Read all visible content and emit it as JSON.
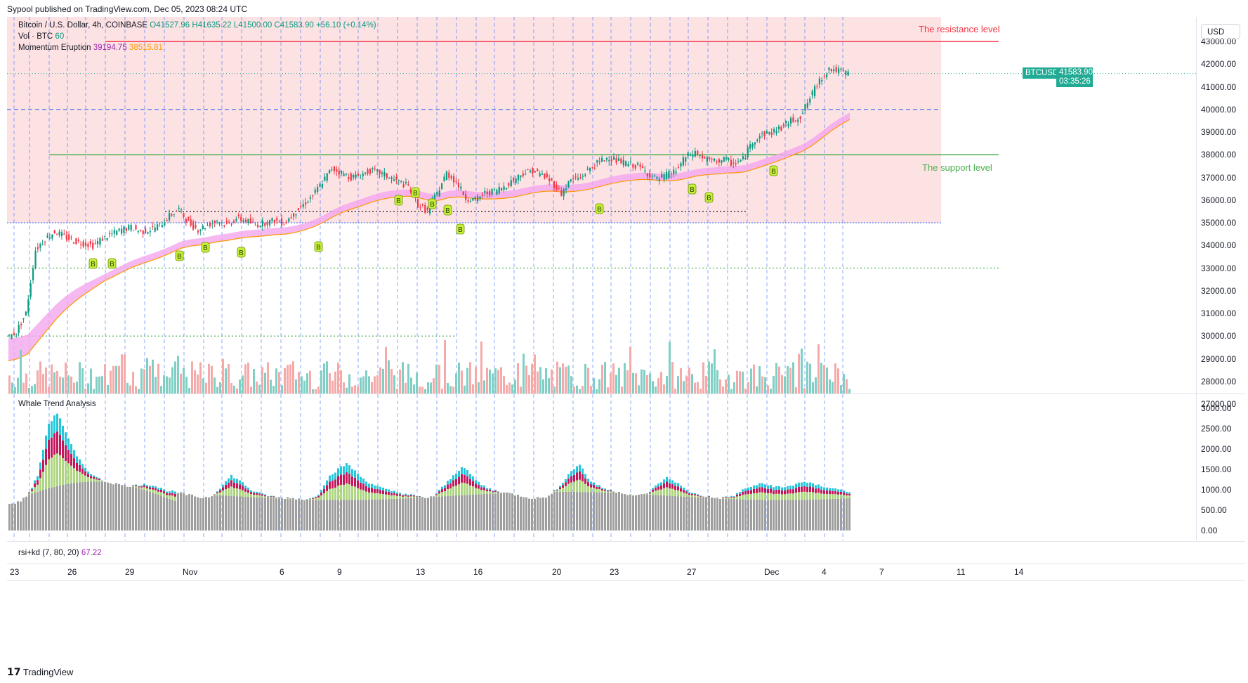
{
  "header": {
    "published_line": "Sypool published on TradingView.com, Dec 05, 2023 08:24 UTC",
    "symbol_line": "Bitcoin / U.S. Dollar, 4h, COINBASE",
    "ohlc": {
      "o": "O41527.96",
      "h": "H41635.22",
      "l": "L41500.00",
      "c": "C41583.90",
      "chg": "+56.10 (+0.14%)"
    },
    "vol_label": "Vol · BTC",
    "vol_value": "60",
    "indicator_name": "Momentum Eruption",
    "indicator_v1": "39194.75",
    "indicator_v2": "38515.81"
  },
  "price_axis": {
    "currency_button": "USD",
    "ticks": [
      "43000.00",
      "42000.00",
      "41000.00",
      "40000.00",
      "39000.00",
      "38000.00",
      "37000.00",
      "36000.00",
      "35000.00",
      "34000.00",
      "33000.00",
      "32000.00",
      "31000.00",
      "30000.00",
      "29000.00",
      "28000.00",
      "27000.00"
    ],
    "symbol_tag": "BTCUSD",
    "last_price": "41583.90",
    "countdown": "03:35:26",
    "last_price_tag_color": "#22ab94"
  },
  "annotations": {
    "resistance_text": "The resistance level",
    "support_text": "The support level",
    "resistance_color": "#f23645",
    "support_color": "#4caf50",
    "buy_marker_text": "B"
  },
  "whale_panel": {
    "title": "Whale Trend Analysis",
    "ticks": [
      "3000.00",
      "2500.00",
      "2000.00",
      "1500.00",
      "1000.00",
      "500.00",
      "0.00"
    ]
  },
  "rsi_panel": {
    "label": "rsi+kd (7, 80, 20)",
    "value": "67.22"
  },
  "time_axis": {
    "labels": [
      "23",
      "26",
      "29",
      "Nov",
      "6",
      "9",
      "13",
      "16",
      "20",
      "23",
      "27",
      "Dec",
      "4",
      "7",
      "11",
      "14"
    ]
  },
  "footer": {
    "brand": "TradingView",
    "logo": "tradingview-logo-icon"
  },
  "chart_data": [
    {
      "type": "candlestick",
      "title": "Bitcoin / U.S. Dollar, 4h, COINBASE",
      "ylim": [
        27000,
        43500
      ],
      "x_labels": [
        "23",
        "26",
        "29",
        "Nov",
        "6",
        "9",
        "13",
        "16",
        "20",
        "23",
        "27",
        "Dec",
        "4",
        "7",
        "11",
        "14"
      ],
      "y_ticks": [
        43000,
        42000,
        41000,
        40000,
        39000,
        38000,
        37000,
        36000,
        35000,
        34000,
        33000,
        32000,
        31000,
        30000,
        29000,
        28000,
        27000
      ],
      "close_path": [
        29900,
        30200,
        31000,
        33800,
        34300,
        34600,
        34400,
        34200,
        34100,
        34000,
        34300,
        34500,
        34700,
        34800,
        34600,
        34700,
        34900,
        35300,
        35600,
        35000,
        34700,
        34900,
        35100,
        34900,
        35200,
        35100,
        34900,
        35000,
        35100,
        35000,
        35400,
        35800,
        36200,
        36800,
        37400,
        37200,
        37000,
        37100,
        37300,
        37200,
        37000,
        36800,
        36600,
        35800,
        35500,
        36300,
        37200,
        36800,
        36100,
        36000,
        36300,
        36400,
        36600,
        36900,
        37200,
        37300,
        37100,
        36800,
        36300,
        36900,
        37000,
        37400,
        37700,
        37900,
        37700,
        37600,
        37500,
        37200,
        36900,
        37100,
        37300,
        37900,
        38100,
        37800,
        37700,
        37800,
        37600,
        37800,
        38600,
        38900,
        39000,
        39200,
        39500,
        39700,
        40500,
        41300,
        41800,
        41700,
        41584
      ],
      "last": {
        "open": 41527.96,
        "high": 41635.22,
        "low": 41500.0,
        "close": 41583.9
      },
      "levels": [
        {
          "name": "The resistance level",
          "price": 43000,
          "color": "#f23645"
        },
        {
          "name": "The support level",
          "price": 38000,
          "color": "#4caf50"
        },
        {
          "name": "blue-dashed",
          "price": 40000,
          "color": "#2962ff"
        },
        {
          "name": "blue-dotted",
          "price": 35000,
          "color": "#2962ff"
        },
        {
          "name": "green-dotted",
          "price": 33000,
          "color": "#4caf50"
        },
        {
          "name": "green-dotted",
          "price": 30000,
          "color": "#4caf50"
        },
        {
          "name": "black-dotted",
          "price": 35500,
          "color": "#131722"
        }
      ],
      "highlight_zone": {
        "from": 35000,
        "to": 43500,
        "color": "#fde2e4"
      },
      "momentum_eruption": {
        "upper_last": 39194.75,
        "lower_last": 38515.81
      },
      "buy_signals": 14
    },
    {
      "type": "bar",
      "title": "Whale Trend Analysis",
      "ylim": [
        0,
        3200
      ],
      "y_ticks": [
        3000,
        2500,
        2000,
        1500,
        1000,
        500,
        0
      ],
      "profile": [
        650,
        700,
        900,
        1400,
        2600,
        2900,
        2300,
        1800,
        1500,
        1300,
        1200,
        1150,
        1100,
        1100,
        1150,
        1100,
        1000,
        950,
        900,
        850,
        800,
        850,
        1100,
        1350,
        1200,
        1000,
        900,
        850,
        800,
        800,
        780,
        760,
        900,
        1300,
        1500,
        1650,
        1400,
        1200,
        1100,
        1000,
        950,
        900,
        850,
        800,
        850,
        1100,
        1350,
        1600,
        1300,
        1100,
        1000,
        950,
        900,
        850,
        800,
        800,
        850,
        1100,
        1400,
        1650,
        1250,
        1100,
        1000,
        950,
        900,
        850,
        900,
        1100,
        1300,
        1200,
        1000,
        900,
        850,
        800,
        800,
        850,
        1000,
        1100,
        1150,
        1100,
        1050,
        1100,
        1200,
        1150,
        1100,
        1050,
        1000,
        950
      ]
    }
  ]
}
